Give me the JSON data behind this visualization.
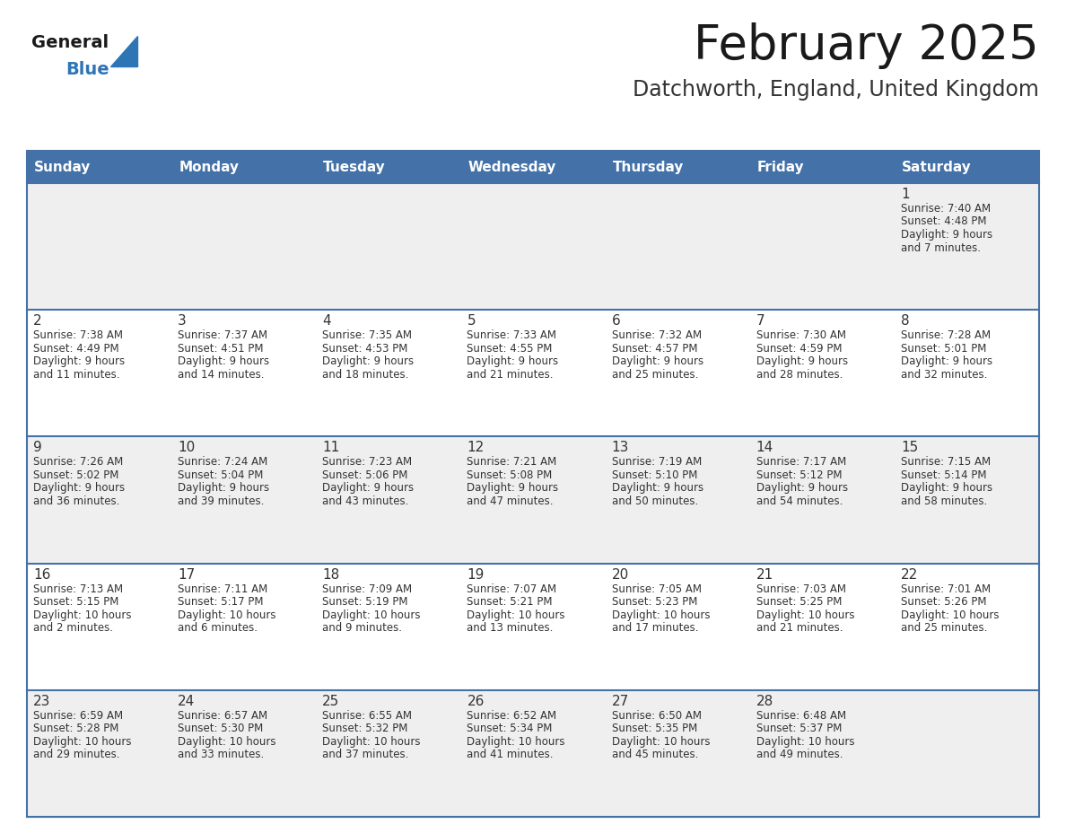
{
  "title": "February 2025",
  "subtitle": "Datchworth, England, United Kingdom",
  "header_bg": "#4472a8",
  "header_text_color": "#ffffff",
  "day_names": [
    "Sunday",
    "Monday",
    "Tuesday",
    "Wednesday",
    "Thursday",
    "Friday",
    "Saturday"
  ],
  "row_bg_odd": "#efefef",
  "row_bg_even": "#ffffff",
  "cell_border_color": "#4472a8",
  "day_num_color": "#333333",
  "info_text_color": "#333333",
  "title_color": "#1a1a1a",
  "subtitle_color": "#333333",
  "logo_general_color": "#1a1a1a",
  "logo_blue_color": "#2e75b6",
  "calendar_data": [
    [
      {
        "day": null,
        "sunrise": null,
        "sunset": null,
        "daylight": null
      },
      {
        "day": null,
        "sunrise": null,
        "sunset": null,
        "daylight": null
      },
      {
        "day": null,
        "sunrise": null,
        "sunset": null,
        "daylight": null
      },
      {
        "day": null,
        "sunrise": null,
        "sunset": null,
        "daylight": null
      },
      {
        "day": null,
        "sunrise": null,
        "sunset": null,
        "daylight": null
      },
      {
        "day": null,
        "sunrise": null,
        "sunset": null,
        "daylight": null
      },
      {
        "day": 1,
        "sunrise": "7:40 AM",
        "sunset": "4:48 PM",
        "daylight": "9 hours and 7 minutes."
      }
    ],
    [
      {
        "day": 2,
        "sunrise": "7:38 AM",
        "sunset": "4:49 PM",
        "daylight": "9 hours and 11 minutes."
      },
      {
        "day": 3,
        "sunrise": "7:37 AM",
        "sunset": "4:51 PM",
        "daylight": "9 hours and 14 minutes."
      },
      {
        "day": 4,
        "sunrise": "7:35 AM",
        "sunset": "4:53 PM",
        "daylight": "9 hours and 18 minutes."
      },
      {
        "day": 5,
        "sunrise": "7:33 AM",
        "sunset": "4:55 PM",
        "daylight": "9 hours and 21 minutes."
      },
      {
        "day": 6,
        "sunrise": "7:32 AM",
        "sunset": "4:57 PM",
        "daylight": "9 hours and 25 minutes."
      },
      {
        "day": 7,
        "sunrise": "7:30 AM",
        "sunset": "4:59 PM",
        "daylight": "9 hours and 28 minutes."
      },
      {
        "day": 8,
        "sunrise": "7:28 AM",
        "sunset": "5:01 PM",
        "daylight": "9 hours and 32 minutes."
      }
    ],
    [
      {
        "day": 9,
        "sunrise": "7:26 AM",
        "sunset": "5:02 PM",
        "daylight": "9 hours and 36 minutes."
      },
      {
        "day": 10,
        "sunrise": "7:24 AM",
        "sunset": "5:04 PM",
        "daylight": "9 hours and 39 minutes."
      },
      {
        "day": 11,
        "sunrise": "7:23 AM",
        "sunset": "5:06 PM",
        "daylight": "9 hours and 43 minutes."
      },
      {
        "day": 12,
        "sunrise": "7:21 AM",
        "sunset": "5:08 PM",
        "daylight": "9 hours and 47 minutes."
      },
      {
        "day": 13,
        "sunrise": "7:19 AM",
        "sunset": "5:10 PM",
        "daylight": "9 hours and 50 minutes."
      },
      {
        "day": 14,
        "sunrise": "7:17 AM",
        "sunset": "5:12 PM",
        "daylight": "9 hours and 54 minutes."
      },
      {
        "day": 15,
        "sunrise": "7:15 AM",
        "sunset": "5:14 PM",
        "daylight": "9 hours and 58 minutes."
      }
    ],
    [
      {
        "day": 16,
        "sunrise": "7:13 AM",
        "sunset": "5:15 PM",
        "daylight": "10 hours and 2 minutes."
      },
      {
        "day": 17,
        "sunrise": "7:11 AM",
        "sunset": "5:17 PM",
        "daylight": "10 hours and 6 minutes."
      },
      {
        "day": 18,
        "sunrise": "7:09 AM",
        "sunset": "5:19 PM",
        "daylight": "10 hours and 9 minutes."
      },
      {
        "day": 19,
        "sunrise": "7:07 AM",
        "sunset": "5:21 PM",
        "daylight": "10 hours and 13 minutes."
      },
      {
        "day": 20,
        "sunrise": "7:05 AM",
        "sunset": "5:23 PM",
        "daylight": "10 hours and 17 minutes."
      },
      {
        "day": 21,
        "sunrise": "7:03 AM",
        "sunset": "5:25 PM",
        "daylight": "10 hours and 21 minutes."
      },
      {
        "day": 22,
        "sunrise": "7:01 AM",
        "sunset": "5:26 PM",
        "daylight": "10 hours and 25 minutes."
      }
    ],
    [
      {
        "day": 23,
        "sunrise": "6:59 AM",
        "sunset": "5:28 PM",
        "daylight": "10 hours and 29 minutes."
      },
      {
        "day": 24,
        "sunrise": "6:57 AM",
        "sunset": "5:30 PM",
        "daylight": "10 hours and 33 minutes."
      },
      {
        "day": 25,
        "sunrise": "6:55 AM",
        "sunset": "5:32 PM",
        "daylight": "10 hours and 37 minutes."
      },
      {
        "day": 26,
        "sunrise": "6:52 AM",
        "sunset": "5:34 PM",
        "daylight": "10 hours and 41 minutes."
      },
      {
        "day": 27,
        "sunrise": "6:50 AM",
        "sunset": "5:35 PM",
        "daylight": "10 hours and 45 minutes."
      },
      {
        "day": 28,
        "sunrise": "6:48 AM",
        "sunset": "5:37 PM",
        "daylight": "10 hours and 49 minutes."
      },
      {
        "day": null,
        "sunrise": null,
        "sunset": null,
        "daylight": null
      }
    ]
  ]
}
